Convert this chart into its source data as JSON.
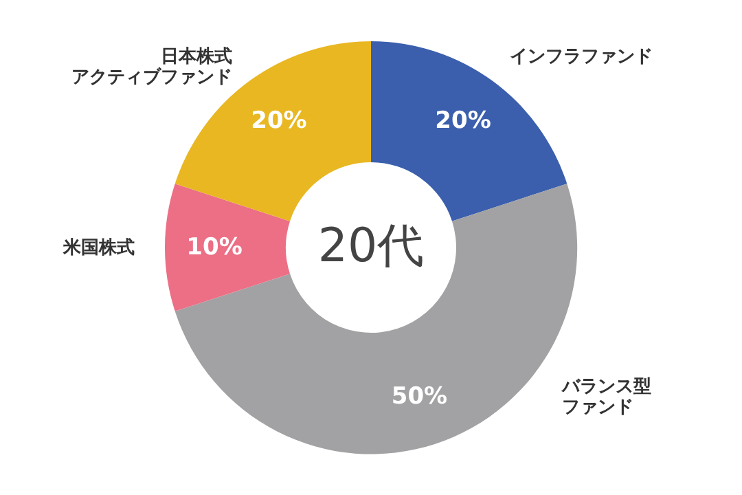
{
  "chart_data": {
    "type": "donut",
    "title": "20代",
    "categories": [
      "インフラファンド",
      "バランス型ファンド",
      "米国株式",
      "日本株式アクティブファンド"
    ],
    "values": [
      20,
      50,
      10,
      20
    ],
    "colors": [
      "#3b5fad",
      "#a2a2a4",
      "#ec6f86",
      "#e8b722"
    ],
    "value_labels": [
      "20%",
      "50%",
      "10%",
      "20%"
    ],
    "legend": false
  }
}
